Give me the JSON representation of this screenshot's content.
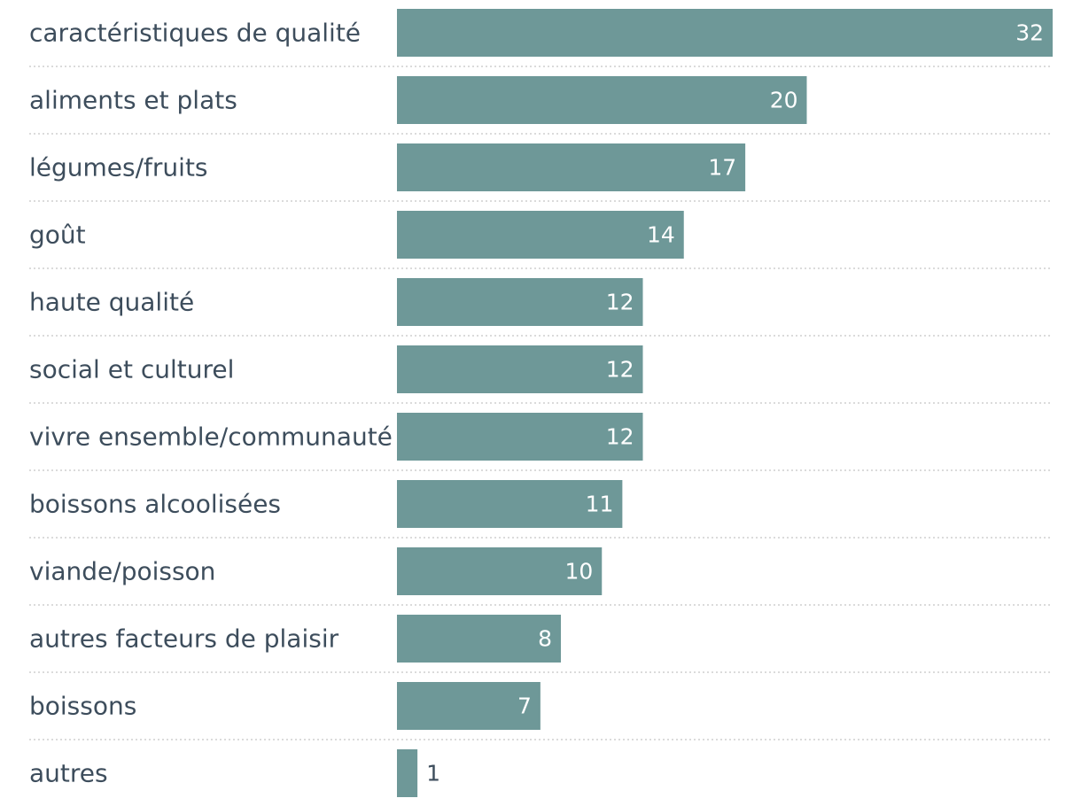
{
  "chart_data": {
    "type": "bar",
    "orientation": "horizontal",
    "title": "",
    "xlabel": "",
    "ylabel": "",
    "xlim": [
      0,
      32
    ],
    "grid": false,
    "legend": "none",
    "bar_color": "#6e9898",
    "label_color": "#3d4d5c",
    "categories": [
      "caractéristiques de qualité",
      "aliments et plats",
      "légumes/fruits",
      "goût",
      "haute qualité",
      "social et culturel",
      "vivre ensemble/communauté",
      "boissons alcoolisées",
      "viande/poisson",
      "autres facteurs de plaisir",
      "boissons",
      "autres"
    ],
    "values": [
      32,
      20,
      17,
      14,
      12,
      12,
      12,
      11,
      10,
      8,
      7,
      1
    ]
  }
}
